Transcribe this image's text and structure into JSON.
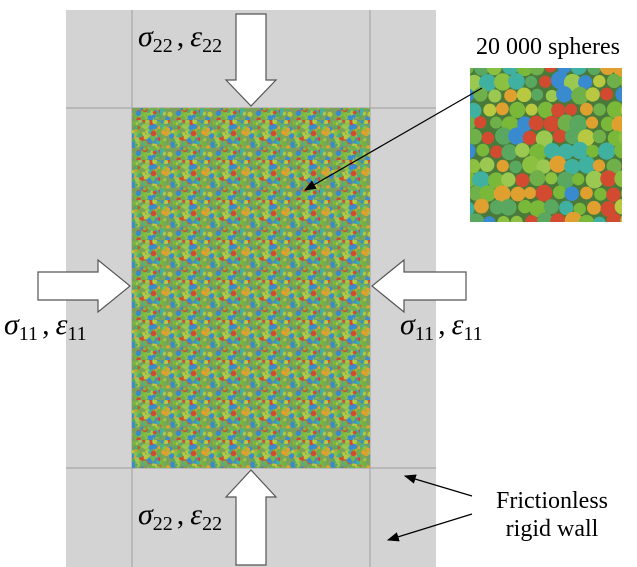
{
  "load_labels": [
    {
      "stress": "σ",
      "stress_index": "22",
      "separator": ",",
      "strain": "ε",
      "strain_index": "22"
    },
    {
      "stress": "σ",
      "stress_index": "11",
      "separator": ",",
      "strain": "ε",
      "strain_index": "11"
    },
    {
      "stress": "σ",
      "stress_index": "11",
      "separator": ",",
      "strain": "ε",
      "strain_index": "11"
    },
    {
      "stress": "σ",
      "stress_index": "22",
      "separator": ",",
      "strain": "ε",
      "strain_index": "22"
    }
  ],
  "inset_caption": "20 000 spheres",
  "wall_label": [
    "Frictionless",
    "rigid wall"
  ]
}
